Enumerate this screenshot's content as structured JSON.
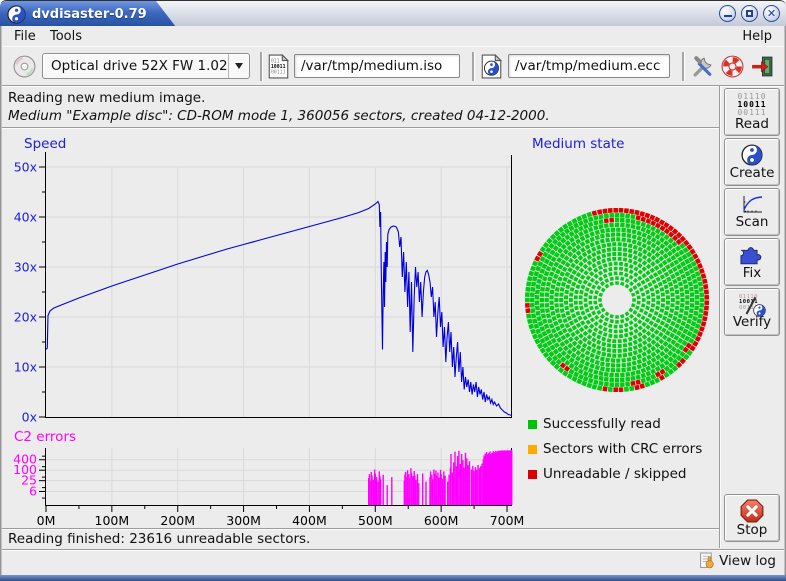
{
  "window": {
    "title": "dvdisaster-0.79"
  },
  "menu": {
    "file": "File",
    "tools": "Tools",
    "help": "Help"
  },
  "toolbar": {
    "drive_selector": {
      "value": "Optical drive 52X FW 1.02"
    },
    "image_file": {
      "value": "/var/tmp/medium.iso"
    },
    "ecc_file": {
      "value": "/var/tmp/medium.ecc"
    }
  },
  "info": {
    "line1": "Reading new medium image.",
    "line2": "Medium \"Example disc\": CD-ROM mode 1, 360056 sectors, created 04-12-2000."
  },
  "sidebar": {
    "read": {
      "label": "Read",
      "icon_rows": [
        "01110",
        "10011",
        "00111"
      ]
    },
    "create": {
      "label": "Create"
    },
    "scan": {
      "label": "Scan"
    },
    "fix": {
      "label": "Fix"
    },
    "verify": {
      "label": "Verify",
      "icon_rows": [
        "01110",
        "10011",
        "00111"
      ]
    },
    "stop": {
      "label": "Stop"
    }
  },
  "legend": {
    "items": [
      {
        "label": "Successfully read",
        "color": "#00c400"
      },
      {
        "label": "Sectors with CRC errors",
        "color": "#ffaa00"
      },
      {
        "label": "Unreadable / skipped",
        "color": "#dd0000"
      }
    ]
  },
  "status": {
    "finished": "Reading finished: 23616 unreadable sectors.",
    "view_log": "View log"
  },
  "chart_data": [
    {
      "type": "line",
      "title": "Speed",
      "label_color": "#2020dd",
      "line_color": "#0000dd",
      "xlabel_unit": "MB",
      "x_ticks": [
        "0M",
        "100M",
        "200M",
        "300M",
        "400M",
        "500M",
        "600M",
        "700M"
      ],
      "x_tick_values": [
        0,
        100,
        200,
        300,
        400,
        500,
        600,
        700
      ],
      "xlim": [
        0,
        710
      ],
      "y_ticks": [
        "0x",
        "10x",
        "20x",
        "30x",
        "40x",
        "50x"
      ],
      "y_tick_values": [
        0,
        10,
        20,
        30,
        40,
        50
      ],
      "ylim": [
        0,
        52
      ],
      "grid": true,
      "points": [
        [
          0,
          13.5
        ],
        [
          2,
          13.8
        ],
        [
          3,
          20.3
        ],
        [
          6,
          21.2
        ],
        [
          12,
          21.8
        ],
        [
          25,
          22.5
        ],
        [
          50,
          23.8
        ],
        [
          75,
          25
        ],
        [
          100,
          26.2
        ],
        [
          125,
          27.3
        ],
        [
          150,
          28.4
        ],
        [
          175,
          29.5
        ],
        [
          200,
          30.6
        ],
        [
          225,
          31.6
        ],
        [
          250,
          32.6
        ],
        [
          275,
          33.6
        ],
        [
          300,
          34.5
        ],
        [
          325,
          35.4
        ],
        [
          350,
          36.3
        ],
        [
          375,
          37.2
        ],
        [
          400,
          38.1
        ],
        [
          425,
          39
        ],
        [
          450,
          39.9
        ],
        [
          475,
          40.9
        ],
        [
          490,
          41.7
        ],
        [
          500,
          42.6
        ],
        [
          504,
          43.1
        ],
        [
          506,
          42.5
        ],
        [
          507,
          38
        ],
        [
          508,
          41
        ],
        [
          509,
          30
        ],
        [
          510,
          21
        ],
        [
          511,
          13.5
        ],
        [
          512,
          25
        ],
        [
          513,
          31
        ],
        [
          514,
          22
        ],
        [
          515,
          33
        ],
        [
          516,
          27
        ],
        [
          517,
          35
        ],
        [
          518,
          30
        ],
        [
          519,
          36.5
        ],
        [
          521,
          37.5
        ],
        [
          524,
          38
        ],
        [
          528,
          38.2
        ],
        [
          532,
          38
        ],
        [
          535,
          37
        ],
        [
          537,
          34
        ],
        [
          539,
          36
        ],
        [
          541,
          28
        ],
        [
          543,
          33
        ],
        [
          545,
          25
        ],
        [
          547,
          31
        ],
        [
          549,
          22
        ],
        [
          551,
          29
        ],
        [
          553,
          17
        ],
        [
          555,
          27
        ],
        [
          557,
          13
        ],
        [
          559,
          24
        ],
        [
          561,
          30
        ],
        [
          563,
          26
        ],
        [
          565,
          29
        ],
        [
          567,
          23
        ],
        [
          569,
          27
        ],
        [
          571,
          20
        ],
        [
          573,
          25
        ],
        [
          575,
          28
        ],
        [
          577,
          29
        ],
        [
          579,
          29.3
        ],
        [
          581,
          28.5
        ],
        [
          583,
          27
        ],
        [
          585,
          24
        ],
        [
          587,
          26
        ],
        [
          589,
          20
        ],
        [
          591,
          23
        ],
        [
          593,
          16
        ],
        [
          595,
          21
        ],
        [
          597,
          24
        ],
        [
          599,
          18
        ],
        [
          601,
          21
        ],
        [
          603,
          14
        ],
        [
          605,
          18
        ],
        [
          607,
          11
        ],
        [
          609,
          16
        ],
        [
          611,
          19
        ],
        [
          613,
          13
        ],
        [
          615,
          17
        ],
        [
          617,
          10
        ],
        [
          619,
          14
        ],
        [
          621,
          8
        ],
        [
          623,
          12
        ],
        [
          625,
          15
        ],
        [
          627,
          9
        ],
        [
          629,
          13
        ],
        [
          631,
          7
        ],
        [
          633,
          10
        ],
        [
          635,
          5.5
        ],
        [
          637,
          8
        ],
        [
          639,
          6
        ],
        [
          641,
          7.5
        ],
        [
          643,
          5
        ],
        [
          645,
          7
        ],
        [
          647,
          4.5
        ],
        [
          649,
          6.5
        ],
        [
          651,
          5
        ],
        [
          653,
          7
        ],
        [
          655,
          4
        ],
        [
          657,
          6
        ],
        [
          659,
          4.5
        ],
        [
          661,
          5.5
        ],
        [
          663,
          3.5
        ],
        [
          665,
          5
        ],
        [
          667,
          3
        ],
        [
          669,
          4.5
        ],
        [
          671,
          3.5
        ],
        [
          673,
          4
        ],
        [
          675,
          2.8
        ],
        [
          677,
          3.5
        ],
        [
          679,
          2.5
        ],
        [
          681,
          3
        ],
        [
          684,
          2.2
        ],
        [
          687,
          2.6
        ],
        [
          690,
          1.8
        ],
        [
          693,
          1.4
        ],
        [
          696,
          1
        ],
        [
          699,
          0.8
        ],
        [
          702,
          0.5
        ],
        [
          705,
          0.4
        ],
        [
          708,
          0.3
        ],
        [
          710,
          0.2
        ]
      ]
    },
    {
      "type": "bar",
      "title": "C2 errors",
      "label_color": "#ff00ff",
      "bar_color": "#ff00ff",
      "scale": "log",
      "y_ticks": [
        6,
        25,
        100,
        400
      ],
      "y_minor_ticks": [
        2.5,
        10,
        40,
        160,
        640
      ],
      "grid": true,
      "bars": [
        [
          490,
          35
        ],
        [
          491,
          60
        ],
        [
          492,
          25
        ],
        [
          494,
          80
        ],
        [
          495,
          50
        ],
        [
          497,
          28
        ],
        [
          499,
          110
        ],
        [
          500,
          65
        ],
        [
          502,
          40
        ],
        [
          504,
          22
        ],
        [
          506,
          85
        ],
        [
          507,
          45
        ],
        [
          508,
          30
        ],
        [
          512,
          55
        ],
        [
          518,
          14
        ],
        [
          525,
          40
        ],
        [
          544,
          25
        ],
        [
          545,
          55
        ],
        [
          546,
          80
        ],
        [
          548,
          40
        ],
        [
          549,
          100
        ],
        [
          551,
          60
        ],
        [
          552,
          35
        ],
        [
          554,
          130
        ],
        [
          555,
          70
        ],
        [
          557,
          45
        ],
        [
          559,
          90
        ],
        [
          560,
          50
        ],
        [
          562,
          28
        ],
        [
          564,
          60
        ],
        [
          566,
          18
        ],
        [
          572,
          65
        ],
        [
          577,
          22
        ],
        [
          583,
          40
        ],
        [
          584,
          85
        ],
        [
          586,
          55
        ],
        [
          587,
          30
        ],
        [
          589,
          110
        ],
        [
          590,
          65
        ],
        [
          592,
          95
        ],
        [
          593,
          50
        ],
        [
          595,
          75
        ],
        [
          597,
          38
        ],
        [
          599,
          105
        ],
        [
          600,
          60
        ],
        [
          602,
          32
        ],
        [
          604,
          85
        ],
        [
          606,
          48
        ],
        [
          610,
          22
        ],
        [
          612,
          55
        ],
        [
          614,
          140
        ],
        [
          615,
          850
        ],
        [
          617,
          75
        ],
        [
          619,
          280
        ],
        [
          621,
          1150
        ],
        [
          623,
          170
        ],
        [
          625,
          650
        ],
        [
          627,
          1300
        ],
        [
          629,
          230
        ],
        [
          631,
          850
        ],
        [
          633,
          380
        ],
        [
          635,
          140
        ],
        [
          637,
          1000
        ],
        [
          639,
          480
        ],
        [
          641,
          190
        ],
        [
          643,
          330
        ],
        [
          646,
          110
        ],
        [
          648,
          180
        ],
        [
          650,
          90
        ],
        [
          652,
          150
        ],
        [
          654,
          105
        ],
        [
          656,
          200
        ],
        [
          658,
          130
        ],
        [
          660,
          170
        ],
        [
          662,
          240
        ],
        [
          664,
          420
        ],
        [
          665,
          700
        ],
        [
          666,
          550
        ],
        [
          667,
          900
        ],
        [
          668,
          650
        ],
        [
          669,
          1100
        ],
        [
          670,
          800
        ],
        [
          671,
          600
        ],
        [
          672,
          950
        ],
        [
          673,
          750
        ],
        [
          674,
          1200
        ],
        [
          675,
          850
        ],
        [
          676,
          700
        ],
        [
          677,
          1000
        ],
        [
          678,
          820
        ],
        [
          679,
          1250
        ],
        [
          680,
          900
        ],
        [
          681,
          1100
        ],
        [
          682,
          950
        ],
        [
          683,
          1300
        ],
        [
          684,
          1150
        ],
        [
          685,
          1000
        ],
        [
          686,
          1250
        ],
        [
          687,
          1100
        ],
        [
          688,
          1350
        ],
        [
          689,
          1200
        ],
        [
          690,
          1300
        ],
        [
          691,
          1150
        ],
        [
          692,
          1400
        ],
        [
          693,
          1250
        ],
        [
          694,
          1350
        ],
        [
          695,
          1200
        ],
        [
          696,
          1400
        ],
        [
          697,
          1300
        ],
        [
          698,
          1350
        ],
        [
          699,
          1250
        ],
        [
          700,
          1400
        ],
        [
          701,
          1300
        ],
        [
          702,
          1350
        ],
        [
          703,
          1400
        ],
        [
          704,
          1300
        ],
        [
          705,
          1350
        ],
        [
          706,
          1400
        ],
        [
          707,
          1350
        ],
        [
          708,
          1400
        ],
        [
          709,
          1350
        ],
        [
          710,
          1400
        ]
      ]
    },
    {
      "type": "disc-map",
      "title": "Medium state",
      "label_color": "#2020dd",
      "rings": 16,
      "colors": {
        "ok": "#00cc11",
        "crc": "#ffaa00",
        "bad": "#e00000"
      },
      "red_arcs": [
        {
          "ring": 15,
          "from": -35,
          "to": 105
        },
        {
          "ring": 14,
          "from": 42,
          "to": 76
        }
      ],
      "red_cells": [
        [
          15,
          150
        ],
        [
          15,
          186
        ],
        [
          14,
          232
        ],
        [
          15,
          262
        ],
        [
          15,
          270
        ],
        [
          14,
          283
        ],
        [
          15,
          300
        ],
        [
          13,
          95
        ],
        [
          14,
          -35
        ],
        [
          15,
          -45
        ],
        [
          14,
          -60
        ],
        [
          15,
          -75
        ]
      ]
    }
  ]
}
